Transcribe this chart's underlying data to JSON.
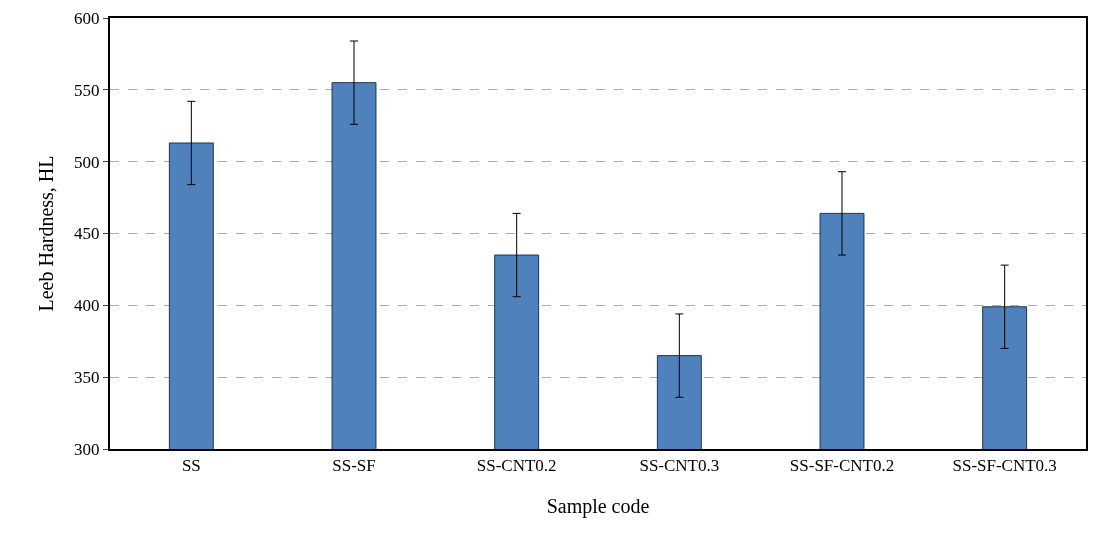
{
  "chart_data": {
    "type": "bar",
    "xlabel": "Sample code",
    "ylabel": "Leeb Hardness, HL",
    "categories": [
      "SS",
      "SS-SF",
      "SS-CNT0.2",
      "SS-CNT0.3",
      "SS-SF-CNT0.2",
      "SS-SF-CNT0.3"
    ],
    "values": [
      513,
      555,
      435,
      365,
      464,
      399
    ],
    "errors": [
      29,
      29,
      29,
      29,
      29,
      29
    ],
    "color": "#4f81bd",
    "ylim": [
      300,
      600
    ],
    "yticks": [
      300,
      350,
      400,
      450,
      500,
      550,
      600
    ],
    "grid": "y"
  }
}
